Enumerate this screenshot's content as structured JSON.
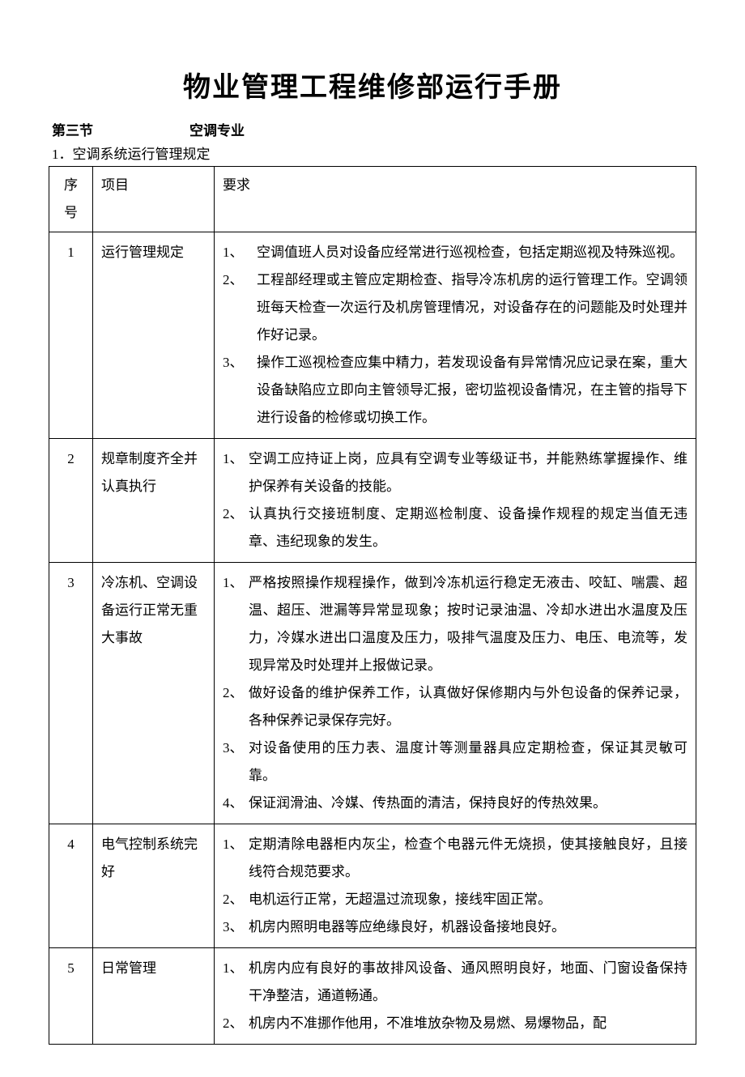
{
  "document": {
    "title": "物业管理工程维修部运行手册",
    "section_label": "第三节",
    "section_name": "空调专业",
    "subsection": "1．空调系统运行管理规定"
  },
  "table": {
    "headers": {
      "seq": "序号",
      "item": "项目",
      "req": "要求"
    },
    "rows": [
      {
        "seq": "1",
        "item": "运行管理规定",
        "requirements": [
          {
            "num": "1、",
            "text": "空调值班人员对设备应经常进行巡视检查，包括定期巡视及特殊巡视。",
            "wide": true
          },
          {
            "num": "2、",
            "text": "工程部经理或主管应定期检查、指导冷冻机房的运行管理工作。空调领班每天检查一次运行及机房管理情况，对设备存在的问题能及时处理并作好记录。",
            "wide": true
          },
          {
            "num": "3、",
            "text": "操作工巡视检查应集中精力，若发现设备有异常情况应记录在案，重大设备缺陷应立即向主管领导汇报，密切监视设备情况，在主管的指导下进行设备的检修或切换工作。",
            "wide": true
          }
        ]
      },
      {
        "seq": "2",
        "item": "规章制度齐全并认真执行",
        "requirements": [
          {
            "num": "1、",
            "text": "空调工应持证上岗，应具有空调专业等级证书，并能熟练掌握操作、维护保养有关设备的技能。"
          },
          {
            "num": "2、",
            "text": "认真执行交接班制度、定期巡检制度、设备操作规程的规定当值无违章、违纪现象的发生。"
          }
        ]
      },
      {
        "seq": "3",
        "item": "冷冻机、空调设备运行正常无重大事故",
        "requirements": [
          {
            "num": "1、",
            "text": "严格按照操作规程操作，做到冷冻机运行稳定无液击、咬缸、喘震、超温、超压、泄漏等异常显现象；按时记录油温、冷却水进出水温度及压力，冷媒水进出口温度及压力，吸排气温度及压力、电压、电流等，发现异常及时处理并上报做记录。"
          },
          {
            "num": "2、",
            "text": "做好设备的维护保养工作，认真做好保修期内与外包设备的保养记录，各种保养记录保存完好。"
          },
          {
            "num": "3、",
            "text": "对设备使用的压力表、温度计等测量器具应定期检查，保证其灵敏可靠。"
          },
          {
            "num": "4、",
            "text": "保证润滑油、冷媒、传热面的清洁，保持良好的传热效果。"
          }
        ]
      },
      {
        "seq": "4",
        "item": "电气控制系统完好",
        "requirements": [
          {
            "num": "1、",
            "text": "定期清除电器柜内灰尘，检查个电器元件无烧损，使其接触良好，且接线符合规范要求。"
          },
          {
            "num": "2、",
            "text": "电机运行正常，无超温过流现象，接线牢固正常。"
          },
          {
            "num": "3、",
            "text": "机房内照明电器等应绝缘良好，机器设备接地良好。"
          }
        ]
      },
      {
        "seq": "5",
        "item": "日常管理",
        "requirements": [
          {
            "num": "1、",
            "text": "机房内应有良好的事故排风设备、通风照明良好，地面、门窗设备保持干净整洁，通道畅通。"
          },
          {
            "num": "2、",
            "text": "机房内不准挪作他用，不准堆放杂物及易燃、易爆物品，配"
          }
        ]
      }
    ]
  }
}
